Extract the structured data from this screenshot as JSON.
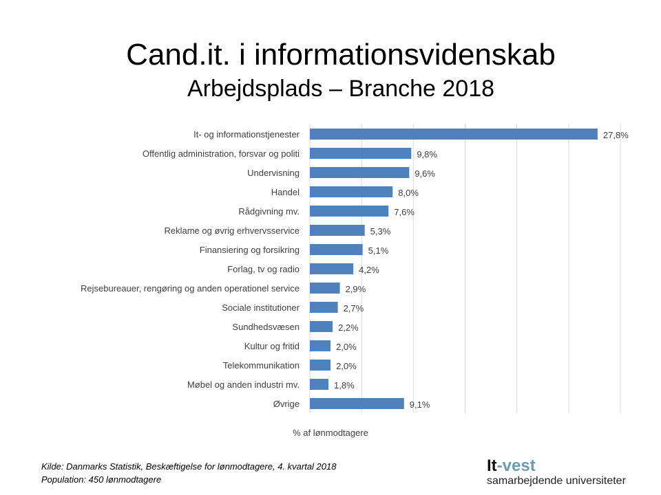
{
  "chart_data": {
    "type": "bar",
    "orientation": "horizontal",
    "title": "Cand.it. i informationsvidenskab",
    "subtitle": "Arbejdsplads – Branche 2018",
    "xlabel": "% af lønmodtagere",
    "ylabel": "",
    "xlim": [
      0,
      30
    ],
    "grid": true,
    "bar_color": "#4F81BD",
    "categories": [
      "It- og informationstjenester",
      "Offentlig administration, forsvar og politi",
      "Undervisning",
      "Handel",
      "Rådgivning mv.",
      "Reklame og øvrig erhvervsservice",
      "Finansiering og forsikring",
      "Forlag, tv og radio",
      "Rejsebureauer, rengøring og anden operationel service",
      "Sociale institutioner",
      "Sundhedsvæsen",
      "Kultur og fritid",
      "Telekommunikation",
      "Møbel og anden industri mv.",
      "Øvrige"
    ],
    "values": [
      27.8,
      9.8,
      9.6,
      8.0,
      7.6,
      5.3,
      5.1,
      4.2,
      2.9,
      2.7,
      2.2,
      2.0,
      2.0,
      1.8,
      9.1
    ],
    "data_labels": [
      "27,8%",
      "9,8%",
      "9,6%",
      "8,0%",
      "7,6%",
      "5,3%",
      "5,1%",
      "4,2%",
      "2,9%",
      "2,7%",
      "2,2%",
      "2,0%",
      "2,0%",
      "1,8%",
      "9,1%"
    ]
  },
  "footer": {
    "source": "Kilde: Danmarks Statistik, Beskæftigelse for lønmodtagere, 4. kvartal 2018",
    "population": "Population: 450 lønmodtagere"
  },
  "logo": {
    "part1": "It",
    "part2": "-vest",
    "tagline": "samarbejdende universiteter"
  }
}
